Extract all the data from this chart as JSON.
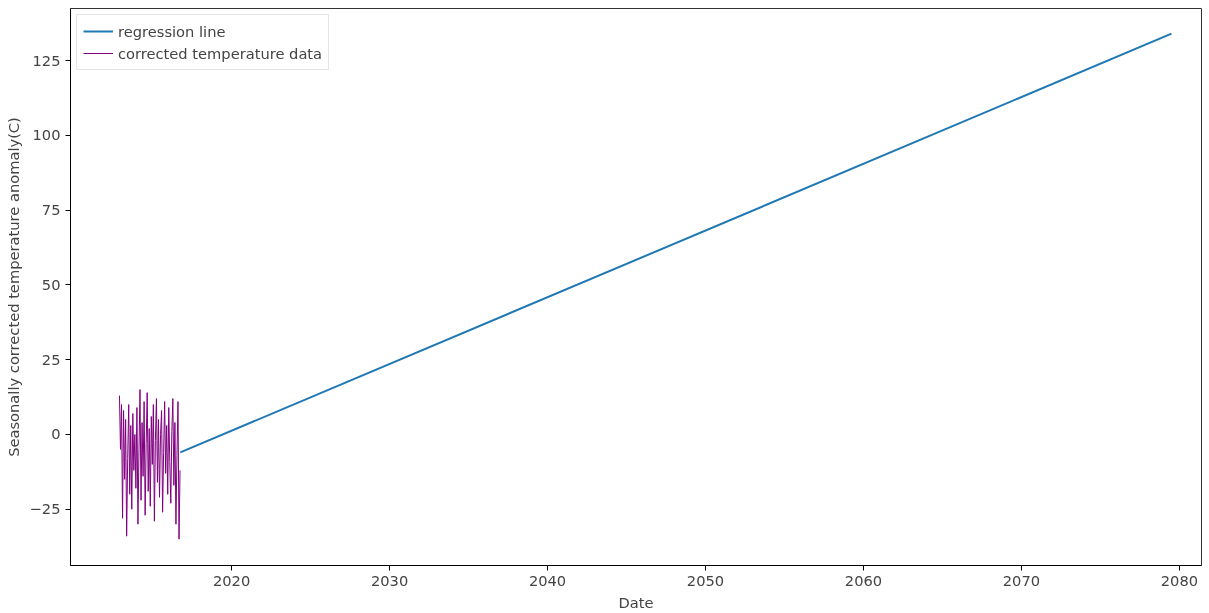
{
  "chart_data": {
    "type": "line",
    "xlabel": "Date",
    "ylabel": "Seasonally corrected temperature anomaly(C)",
    "xlim": [
      2009.8,
      2081.4
    ],
    "xticks": [
      2020,
      2030,
      2040,
      2050,
      2060,
      2070,
      2080
    ],
    "ylim": [
      -43.8,
      142.4
    ],
    "yticks": [
      -25,
      0,
      25,
      50,
      75,
      100,
      125
    ],
    "grid": false,
    "legend": "top left",
    "marker": "none",
    "line_style": "solid",
    "series": [
      {
        "name": "regression line",
        "color": "#1f77b4",
        "x": [
          2016.75,
          2079.5
        ],
        "values": [
          -6,
          134
        ]
      },
      {
        "name": "corrected temperature data",
        "color": "#800080",
        "x": [
          2012.9,
          2012.965,
          2013.03,
          2013.095,
          2013.16,
          2013.225,
          2013.29,
          2013.355,
          2013.42,
          2013.485,
          2013.55,
          2013.615,
          2013.68,
          2013.745,
          2013.81,
          2013.875,
          2013.94,
          2014.005,
          2014.07,
          2014.135,
          2014.2,
          2014.265,
          2014.33,
          2014.395,
          2014.46,
          2014.525,
          2014.59,
          2014.655,
          2014.72,
          2014.785,
          2014.85,
          2014.915,
          2014.98,
          2015.045,
          2015.11,
          2015.175,
          2015.24,
          2015.305,
          2015.37,
          2015.435,
          2015.5,
          2015.565,
          2015.63,
          2015.695,
          2015.76,
          2015.825,
          2015.89,
          2015.955,
          2016.02,
          2016.085,
          2016.15,
          2016.215,
          2016.28,
          2016.345,
          2016.41,
          2016.475,
          2016.54,
          2016.605,
          2016.67,
          2016.735
        ],
        "values": [
          13,
          -5,
          10,
          -28,
          8,
          -15,
          5,
          -34,
          -8,
          10,
          -20,
          3,
          -25,
          7,
          -12,
          0,
          -18,
          9,
          -30,
          -5,
          15,
          -22,
          4,
          -14,
          11,
          -27,
          -3,
          14,
          -19,
          2,
          -24,
          6,
          -10,
          10,
          -29,
          -2,
          12,
          -16,
          5,
          -21,
          0,
          8,
          -26,
          -6,
          11,
          -13,
          3,
          -20,
          9,
          -9,
          -23,
          1,
          12,
          -17,
          4,
          -30,
          -7,
          11,
          -35,
          -12
        ]
      }
    ]
  }
}
